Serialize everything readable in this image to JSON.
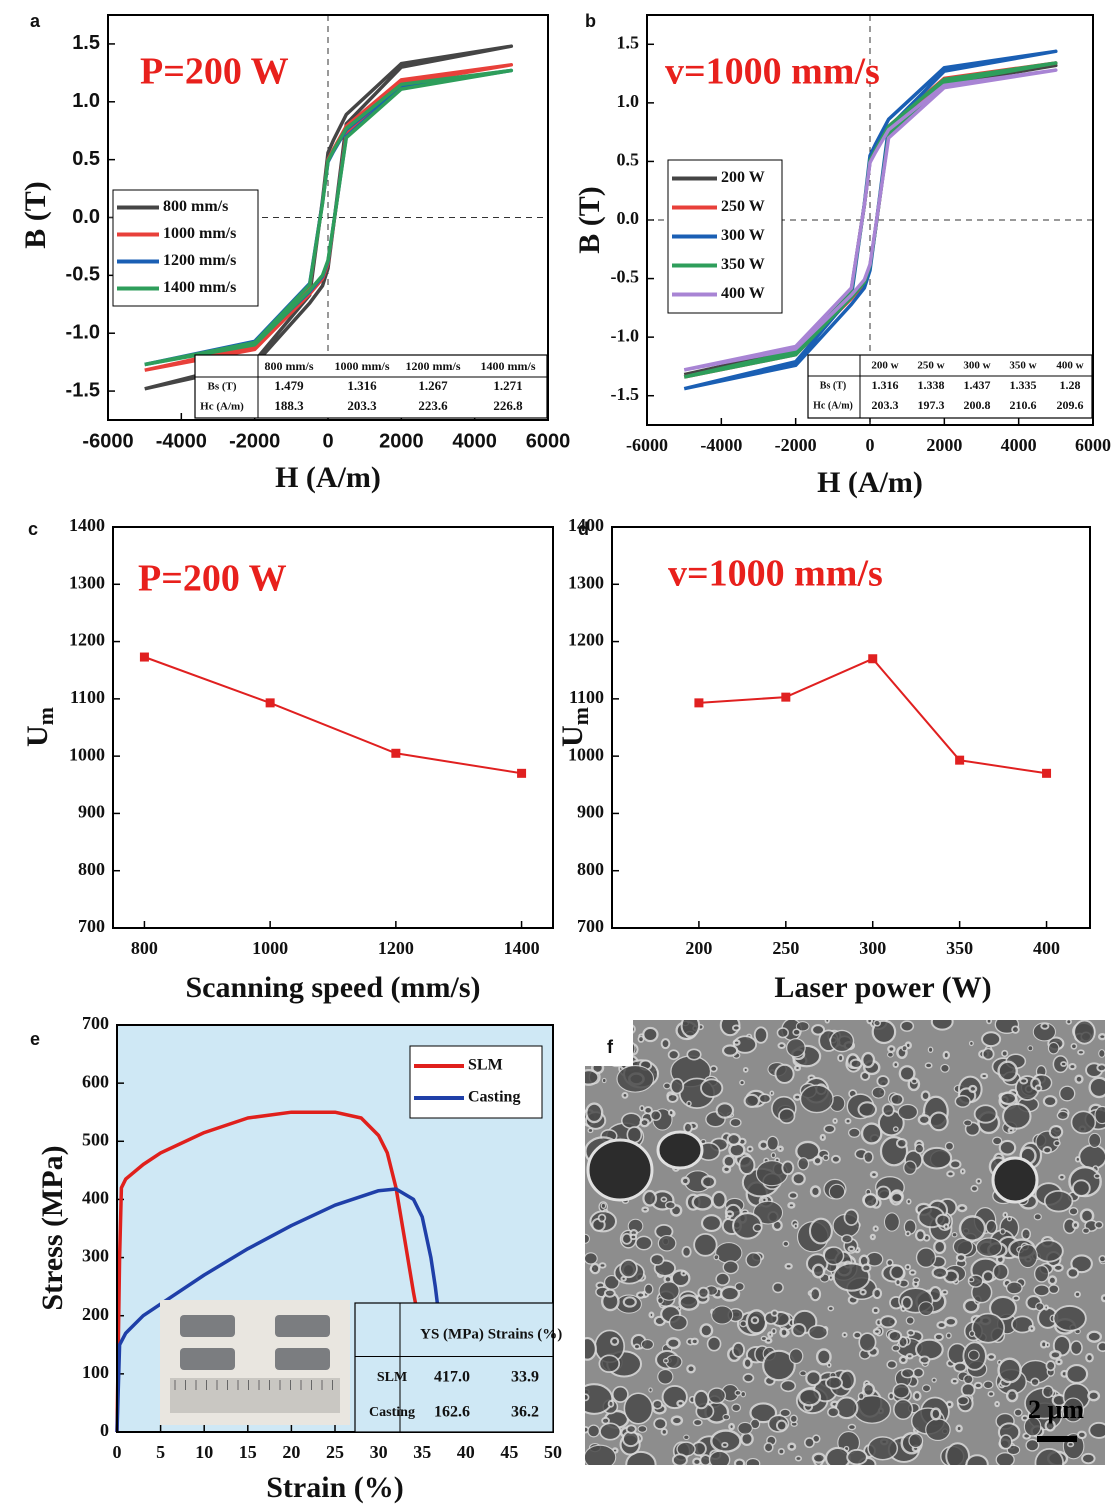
{
  "chart_data": [
    {
      "type": "line",
      "panel_label": "a",
      "annotation": "P=200 W",
      "xlabel": "H (A/m)",
      "ylabel": "B (T)",
      "xlim": [
        -6000,
        6000
      ],
      "ylim": [
        -1.75,
        1.75
      ],
      "xticks": [
        -6000,
        -4000,
        -2000,
        0,
        2000,
        4000,
        6000
      ],
      "yticks": [
        -1.5,
        {
          "value": -1,
          "label": "-1.0"
        },
        -0.5,
        {
          "value": 0,
          "label": "0.0"
        },
        0.5,
        {
          "value": 1,
          "label": "1.0"
        },
        1.5
      ],
      "zero_lines": true,
      "legend": "center left",
      "x": [
        -5000,
        -2000,
        -500,
        -150,
        0,
        150,
        500,
        2000,
        5000,
        5000,
        2000,
        500,
        150,
        0,
        -150,
        -500,
        -2000,
        -5000
      ],
      "series": [
        {
          "name": "800 mm/s",
          "color": "#454545",
          "values": [
            -1.48,
            -1.27,
            -0.74,
            -0.59,
            -0.44,
            -0.07,
            0.81,
            1.3,
            1.48,
            1.48,
            1.33,
            0.89,
            0.67,
            0.56,
            0.15,
            -0.67,
            -1.24,
            -1.48
          ]
        },
        {
          "name": "1000 mm/s",
          "color": "#e8403a",
          "values": [
            -1.32,
            -1.14,
            -0.66,
            -0.53,
            -0.4,
            -0.07,
            0.73,
            1.16,
            1.32,
            1.32,
            1.19,
            0.79,
            0.59,
            0.5,
            0.13,
            -0.59,
            -1.11,
            -1.32
          ]
        },
        {
          "name": "1200 mm/s",
          "color": "#1a5fb4",
          "values": [
            -1.27,
            -1.09,
            -0.64,
            -0.51,
            -0.38,
            -0.06,
            0.7,
            1.12,
            1.27,
            1.27,
            1.14,
            0.76,
            0.57,
            0.48,
            0.13,
            -0.57,
            -1.07,
            -1.27
          ]
        },
        {
          "name": "1400 mm/s",
          "color": "#2e9e5b",
          "values": [
            -1.27,
            -1.1,
            -0.63,
            -0.5,
            -0.37,
            -0.06,
            0.69,
            1.11,
            1.27,
            1.27,
            1.15,
            0.77,
            0.58,
            0.49,
            0.12,
            -0.58,
            -1.08,
            -1.27
          ]
        }
      ],
      "table": {
        "header": [
          "800 mm/s",
          "1000 mm/s",
          "1200 mm/s",
          "1400 mm/s"
        ],
        "rows": [
          [
            "Bs (T)",
            "1.479",
            "1.316",
            "1.267",
            "1.271"
          ],
          [
            "Hc (A/m)",
            "188.3",
            "203.3",
            "223.6",
            "226.8"
          ]
        ]
      }
    },
    {
      "type": "line",
      "panel_label": "b",
      "annotation": "v=1000 mm/s",
      "xlabel": "H (A/m)",
      "ylabel": "B (T)",
      "xlim": [
        -6000,
        6000
      ],
      "ylim": [
        -1.75,
        1.75
      ],
      "xticks": [
        -6000,
        -4000,
        -2000,
        0,
        2000,
        4000,
        6000
      ],
      "yticks": [
        -1.5,
        {
          "value": -1,
          "label": "-1.0"
        },
        -0.5,
        {
          "value": 0,
          "label": "0.0"
        },
        0.5,
        {
          "value": 1,
          "label": "1.0"
        },
        1.5
      ],
      "zero_lines": true,
      "legend": "center left",
      "x": [
        -5000,
        -2000,
        -500,
        -150,
        0,
        150,
        500,
        2000,
        5000,
        5000,
        2000,
        500,
        150,
        0,
        -150,
        -500,
        -2000,
        -5000
      ],
      "series": [
        {
          "name": "200 W",
          "color": "#454545",
          "values": [
            -1.32,
            -1.14,
            -0.66,
            -0.53,
            -0.4,
            -0.07,
            0.73,
            1.16,
            1.32,
            1.32,
            1.19,
            0.79,
            0.59,
            0.5,
            0.13,
            -0.59,
            -1.11,
            -1.32
          ]
        },
        {
          "name": "250 W",
          "color": "#e8403a",
          "values": [
            -1.34,
            -1.15,
            -0.67,
            -0.54,
            -0.4,
            -0.07,
            0.74,
            1.18,
            1.34,
            1.34,
            1.21,
            0.8,
            0.6,
            0.51,
            0.13,
            -0.6,
            -1.13,
            -1.34
          ]
        },
        {
          "name": "300 W",
          "color": "#1a5fb4",
          "values": [
            -1.44,
            -1.24,
            -0.72,
            -0.58,
            -0.43,
            -0.07,
            0.79,
            1.27,
            1.44,
            1.44,
            1.3,
            0.86,
            0.65,
            0.55,
            0.14,
            -0.65,
            -1.21,
            -1.44
          ]
        },
        {
          "name": "350 W",
          "color": "#2e9e5b",
          "values": [
            -1.34,
            -1.15,
            -0.66,
            -0.53,
            -0.39,
            -0.07,
            0.73,
            1.17,
            1.34,
            1.34,
            1.2,
            0.8,
            0.6,
            0.51,
            0.13,
            -0.6,
            -1.12,
            -1.34
          ]
        },
        {
          "name": "400 W",
          "color": "#a884d4",
          "values": [
            -1.28,
            -1.1,
            -0.64,
            -0.51,
            -0.38,
            -0.06,
            0.7,
            1.13,
            1.28,
            1.28,
            1.15,
            0.77,
            0.58,
            0.49,
            0.13,
            -0.58,
            -1.08,
            -1.28
          ]
        }
      ],
      "table": {
        "header": [
          "200 w",
          "250 w",
          "300 w",
          "350 w",
          "400 w"
        ],
        "rows": [
          [
            "Bs (T)",
            "1.316",
            "1.338",
            "1.437",
            "1.335",
            "1.28"
          ],
          [
            "Hc (A/m)",
            "203.3",
            "197.3",
            "200.8",
            "210.6",
            "209.6"
          ]
        ]
      }
    },
    {
      "type": "line",
      "panel_label": "c",
      "annotation": "P=200 W",
      "xlabel": "Scanning speed (mm/s)",
      "ylabel": [
        "U",
        "m"
      ],
      "xlim": [
        750,
        1450
      ],
      "ylim": [
        700,
        1400
      ],
      "xticks": [
        800,
        1000,
        1200,
        1400
      ],
      "yticks": [
        700,
        800,
        900,
        1000,
        1100,
        1200,
        1300,
        1400
      ],
      "markers": true,
      "x": [
        800,
        1000,
        1200,
        1400
      ],
      "series": [
        {
          "color": "#e02020",
          "values": [
            1173,
            1093,
            1005,
            970
          ]
        }
      ]
    },
    {
      "type": "line",
      "panel_label": "d",
      "annotation": "v=1000 mm/s",
      "xlabel": "Laser power (W)",
      "ylabel": [
        "U",
        "m"
      ],
      "xlim": [
        150,
        425
      ],
      "ylim": [
        700,
        1400
      ],
      "xticks": [
        200,
        250,
        300,
        350,
        400
      ],
      "yticks": [
        700,
        800,
        900,
        1000,
        1100,
        1200,
        1300,
        1400
      ],
      "markers": true,
      "x": [
        200,
        250,
        300,
        350,
        400
      ],
      "series": [
        {
          "color": "#e02020",
          "values": [
            1093,
            1103,
            1170,
            993,
            970
          ]
        }
      ]
    },
    {
      "type": "line",
      "panel_label": "e",
      "xlabel": "Strain (%)",
      "ylabel": "Stress (MPa)",
      "xlim": [
        0,
        50
      ],
      "ylim": [
        0,
        700
      ],
      "xticks": [
        0,
        5,
        10,
        15,
        20,
        25,
        30,
        35,
        40,
        45,
        50
      ],
      "yticks": [
        0,
        100,
        200,
        300,
        400,
        500,
        600,
        700
      ],
      "background": "#cfe8f5",
      "legend": "upper right",
      "series": [
        {
          "name": "SLM",
          "color": "#e0201c",
          "x": [
            0,
            0.3,
            0.5,
            1,
            3,
            5,
            10,
            15,
            20,
            25,
            28,
            30,
            31,
            32,
            33,
            34,
            34.5
          ],
          "values": [
            0,
            300,
            420,
            435,
            460,
            480,
            515,
            540,
            550,
            550,
            540,
            510,
            480,
            420,
            330,
            240,
            200
          ]
        },
        {
          "name": "Casting",
          "color": "#1f3fa8",
          "x": [
            0,
            0.3,
            1,
            3,
            5,
            10,
            15,
            20,
            25,
            30,
            32,
            34,
            35,
            36,
            36.5,
            37
          ],
          "values": [
            0,
            150,
            170,
            200,
            220,
            270,
            315,
            355,
            390,
            415,
            418,
            400,
            370,
            300,
            250,
            190
          ]
        }
      ],
      "table": {
        "header": [
          "YS (MPa)",
          "Strains (%)"
        ],
        "rows": [
          [
            "SLM",
            "417.0",
            "33.9"
          ],
          [
            "Casting",
            "162.6",
            "36.2"
          ]
        ]
      }
    }
  ],
  "image": {
    "panel_label": "f",
    "scale_bar": "2 μm"
  }
}
